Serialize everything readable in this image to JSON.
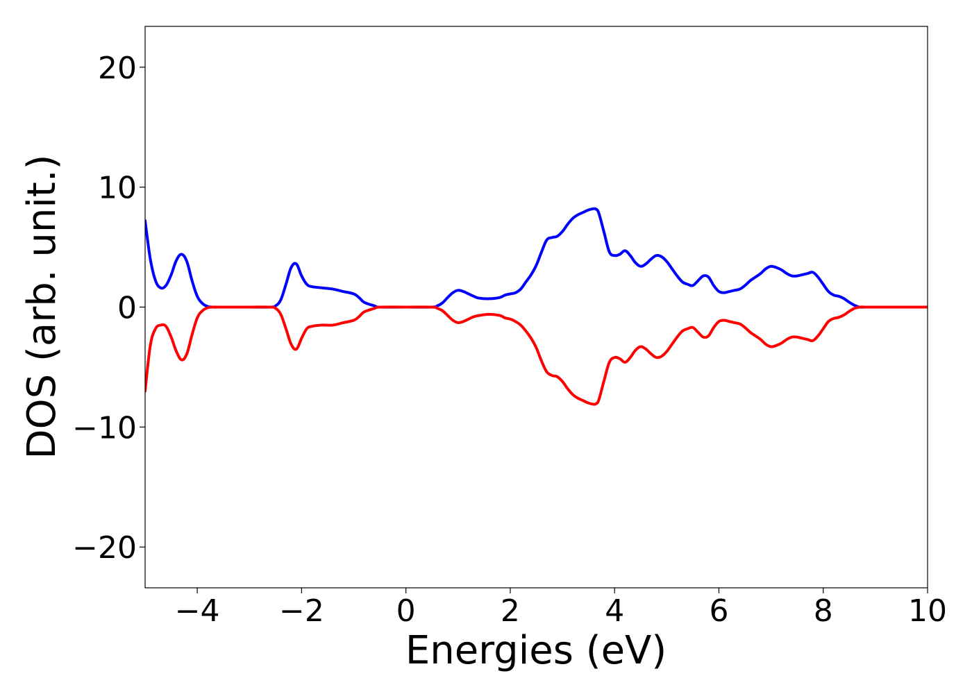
{
  "chart_data": {
    "type": "line",
    "xlabel": "Energies (eV)",
    "ylabel": "DOS (arb. unit.)",
    "xlim": [
      -5,
      10
    ],
    "ylim": [
      -23.4,
      23.4
    ],
    "xticks": [
      -4,
      -2,
      0,
      2,
      4,
      6,
      8,
      10
    ],
    "xtick_labels": [
      "−4",
      "−2",
      "0",
      "2",
      "4",
      "6",
      "8",
      "10"
    ],
    "yticks": [
      -20,
      -10,
      0,
      10,
      20
    ],
    "ytick_labels": [
      "−20",
      "−10",
      "0",
      "10",
      "20"
    ],
    "grid": false,
    "legend": "none",
    "series": [
      {
        "color": "#0000ff",
        "x": [
          -5.0,
          -4.9,
          -4.8,
          -4.7,
          -4.6,
          -4.5,
          -4.4,
          -4.3,
          -4.2,
          -4.1,
          -4.0,
          -3.9,
          -3.8,
          -3.7,
          -3.5,
          -3.0,
          -2.6,
          -2.5,
          -2.4,
          -2.3,
          -2.2,
          -2.1,
          -2.0,
          -1.9,
          -1.8,
          -1.6,
          -1.4,
          -1.2,
          -1.0,
          -0.9,
          -0.8,
          -0.6,
          -0.5,
          0.0,
          0.5,
          0.6,
          0.7,
          0.8,
          0.9,
          1.0,
          1.1,
          1.2,
          1.3,
          1.4,
          1.6,
          1.8,
          1.9,
          2.0,
          2.1,
          2.2,
          2.3,
          2.4,
          2.5,
          2.6,
          2.7,
          2.8,
          2.9,
          3.0,
          3.1,
          3.2,
          3.3,
          3.4,
          3.5,
          3.6,
          3.65,
          3.7,
          3.8,
          3.9,
          4.0,
          4.1,
          4.2,
          4.3,
          4.4,
          4.5,
          4.6,
          4.7,
          4.8,
          4.9,
          5.0,
          5.1,
          5.2,
          5.3,
          5.4,
          5.5,
          5.6,
          5.7,
          5.8,
          5.9,
          6.0,
          6.1,
          6.2,
          6.3,
          6.4,
          6.5,
          6.6,
          6.7,
          6.8,
          6.9,
          7.0,
          7.1,
          7.2,
          7.3,
          7.4,
          7.5,
          7.6,
          7.7,
          7.8,
          7.9,
          8.0,
          8.1,
          8.2,
          8.3,
          8.4,
          8.5,
          8.6,
          8.7,
          8.8,
          8.9,
          9.0,
          10.0
        ],
        "y": [
          7.2,
          4.0,
          2.2,
          1.6,
          1.8,
          2.7,
          3.9,
          4.4,
          3.8,
          2.2,
          0.9,
          0.3,
          0.05,
          0.0,
          0.0,
          0.0,
          0.0,
          0.1,
          0.6,
          1.9,
          3.3,
          3.6,
          2.6,
          1.9,
          1.7,
          1.6,
          1.5,
          1.3,
          1.1,
          0.8,
          0.4,
          0.1,
          0.0,
          0.0,
          0.0,
          0.1,
          0.35,
          0.8,
          1.2,
          1.4,
          1.3,
          1.1,
          0.9,
          0.75,
          0.7,
          0.8,
          1.0,
          1.1,
          1.2,
          1.5,
          2.1,
          2.7,
          3.5,
          4.6,
          5.6,
          5.8,
          5.9,
          6.3,
          6.9,
          7.4,
          7.7,
          7.9,
          8.1,
          8.2,
          8.15,
          7.8,
          6.2,
          4.6,
          4.3,
          4.4,
          4.7,
          4.3,
          3.7,
          3.4,
          3.6,
          4.0,
          4.3,
          4.2,
          3.8,
          3.2,
          2.6,
          2.1,
          1.9,
          1.8,
          2.2,
          2.6,
          2.5,
          1.8,
          1.3,
          1.2,
          1.3,
          1.4,
          1.5,
          1.8,
          2.2,
          2.5,
          2.8,
          3.2,
          3.4,
          3.3,
          3.1,
          2.8,
          2.6,
          2.6,
          2.7,
          2.8,
          2.9,
          2.5,
          1.9,
          1.3,
          1.0,
          0.9,
          0.7,
          0.4,
          0.15,
          0.0,
          0.0,
          0.0,
          0.0,
          0.0
        ]
      },
      {
        "color": "#ff0000",
        "x": [
          -5.0,
          -4.9,
          -4.8,
          -4.7,
          -4.6,
          -4.5,
          -4.4,
          -4.3,
          -4.2,
          -4.1,
          -4.0,
          -3.9,
          -3.8,
          -3.7,
          -3.5,
          -3.0,
          -2.6,
          -2.5,
          -2.4,
          -2.3,
          -2.2,
          -2.1,
          -2.0,
          -1.9,
          -1.8,
          -1.6,
          -1.4,
          -1.2,
          -1.0,
          -0.9,
          -0.8,
          -0.6,
          -0.5,
          0.0,
          0.5,
          0.6,
          0.7,
          0.8,
          0.9,
          1.0,
          1.1,
          1.2,
          1.3,
          1.4,
          1.6,
          1.8,
          1.9,
          2.0,
          2.1,
          2.2,
          2.3,
          2.4,
          2.5,
          2.6,
          2.7,
          2.8,
          2.9,
          3.0,
          3.1,
          3.2,
          3.3,
          3.4,
          3.5,
          3.6,
          3.65,
          3.7,
          3.8,
          3.9,
          4.0,
          4.1,
          4.2,
          4.3,
          4.4,
          4.5,
          4.6,
          4.7,
          4.8,
          4.9,
          5.0,
          5.1,
          5.2,
          5.3,
          5.4,
          5.5,
          5.6,
          5.7,
          5.8,
          5.9,
          6.0,
          6.1,
          6.2,
          6.3,
          6.4,
          6.5,
          6.6,
          6.7,
          6.8,
          6.9,
          7.0,
          7.1,
          7.2,
          7.3,
          7.4,
          7.5,
          7.6,
          7.7,
          7.8,
          7.9,
          8.0,
          8.1,
          8.2,
          8.3,
          8.4,
          8.5,
          8.6,
          8.7,
          8.8,
          8.9,
          9.0,
          10.0
        ],
        "y": [
          -7.0,
          -3.2,
          -1.8,
          -1.5,
          -1.6,
          -2.5,
          -3.7,
          -4.4,
          -3.9,
          -2.3,
          -0.9,
          -0.3,
          -0.05,
          0.0,
          0.0,
          0.0,
          0.0,
          -0.1,
          -0.6,
          -1.8,
          -3.1,
          -3.5,
          -2.6,
          -1.8,
          -1.6,
          -1.5,
          -1.5,
          -1.3,
          -1.1,
          -0.8,
          -0.4,
          -0.1,
          0.0,
          0.0,
          0.0,
          -0.1,
          -0.3,
          -0.7,
          -1.1,
          -1.3,
          -1.2,
          -1.0,
          -0.8,
          -0.7,
          -0.6,
          -0.7,
          -0.9,
          -1.0,
          -1.2,
          -1.5,
          -2.0,
          -2.6,
          -3.4,
          -4.5,
          -5.4,
          -5.7,
          -5.8,
          -6.2,
          -6.8,
          -7.3,
          -7.6,
          -7.8,
          -8.0,
          -8.1,
          -8.05,
          -7.7,
          -6.1,
          -4.6,
          -4.2,
          -4.3,
          -4.6,
          -4.2,
          -3.6,
          -3.3,
          -3.5,
          -3.9,
          -4.2,
          -4.1,
          -3.7,
          -3.1,
          -2.5,
          -2.0,
          -1.8,
          -1.7,
          -2.1,
          -2.5,
          -2.4,
          -1.7,
          -1.2,
          -1.1,
          -1.2,
          -1.3,
          -1.4,
          -1.7,
          -2.1,
          -2.4,
          -2.7,
          -3.1,
          -3.3,
          -3.2,
          -3.0,
          -2.7,
          -2.5,
          -2.5,
          -2.6,
          -2.7,
          -2.8,
          -2.4,
          -1.8,
          -1.2,
          -0.95,
          -0.85,
          -0.65,
          -0.35,
          -0.1,
          0.0,
          0.0,
          0.0,
          0.0,
          0.0
        ]
      }
    ]
  }
}
